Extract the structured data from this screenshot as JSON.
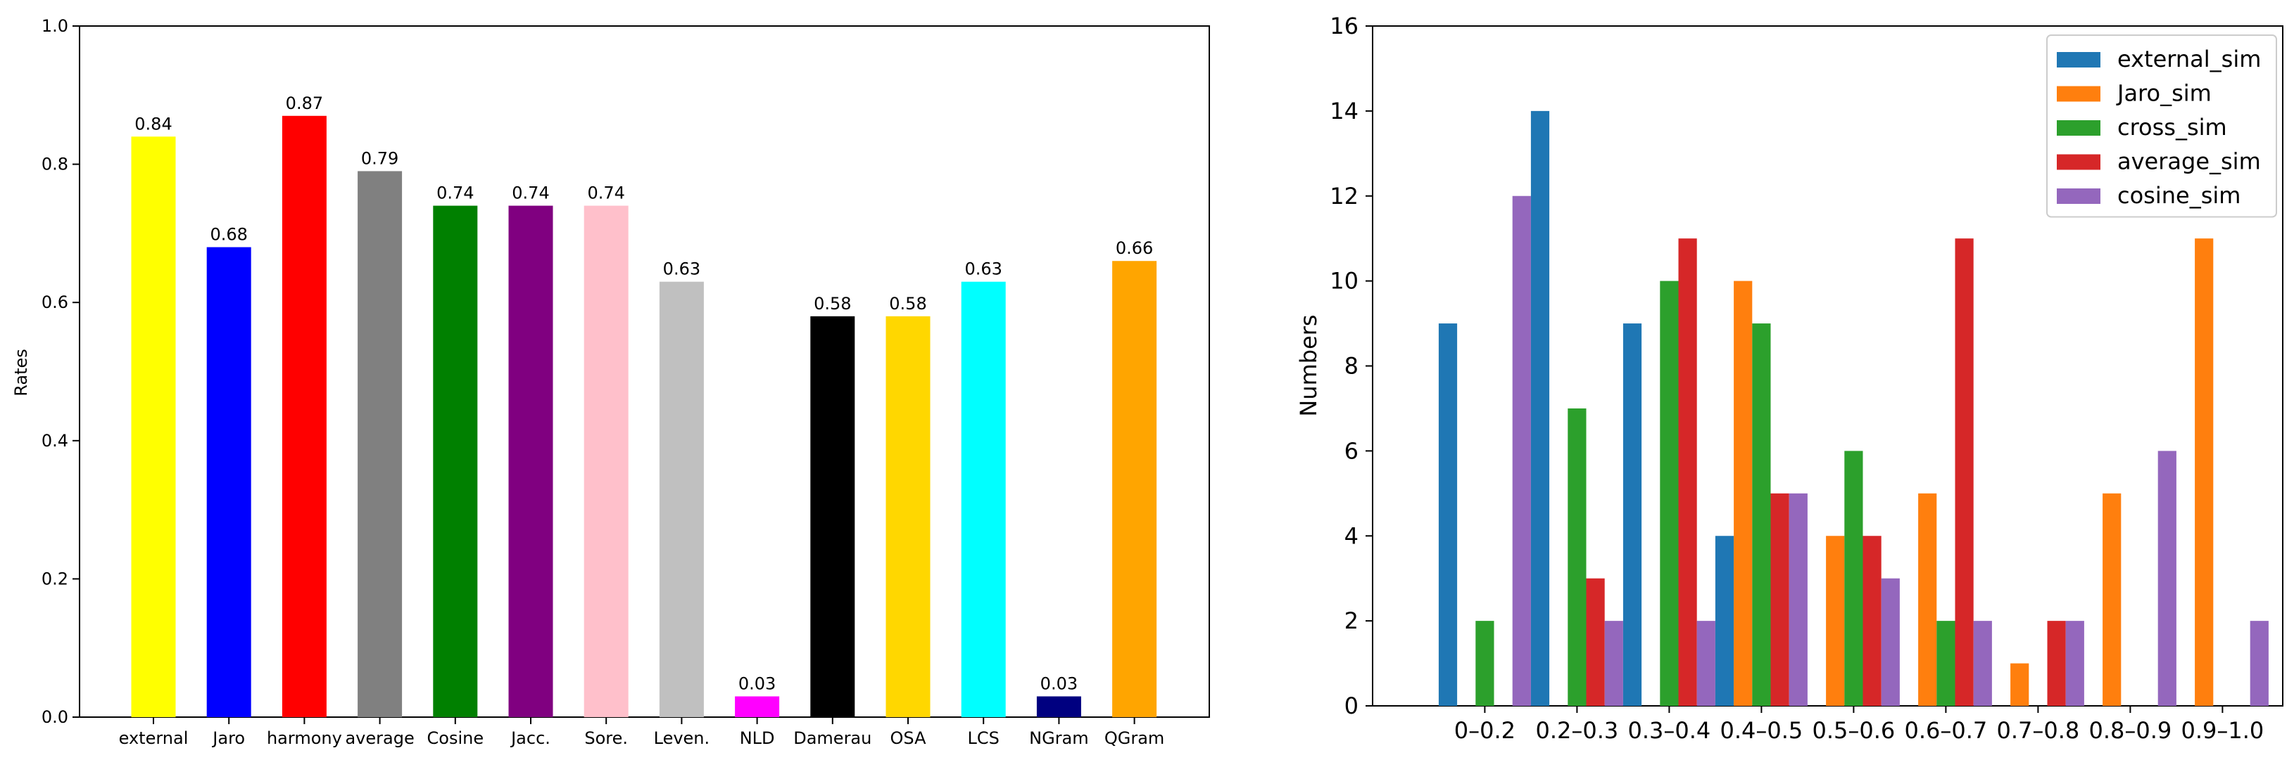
{
  "chart_data": [
    {
      "type": "bar",
      "title": "",
      "xlabel": "",
      "ylabel": "Rates",
      "ylim": [
        0,
        1.0
      ],
      "yticks": [
        "0.0",
        "0.2",
        "0.4",
        "0.6",
        "0.8",
        "1.0"
      ],
      "categories": [
        "external",
        "Jaro",
        "harmony",
        "average",
        "Cosine",
        "Jacc.",
        "Sore.",
        "Leven.",
        "NLD",
        "Damerau",
        "OSA",
        "LCS",
        "NGram",
        "QGram"
      ],
      "values": [
        0.84,
        0.68,
        0.87,
        0.79,
        0.74,
        0.74,
        0.74,
        0.63,
        0.03,
        0.58,
        0.58,
        0.63,
        0.03,
        0.66
      ],
      "value_labels": [
        "0.84",
        "0.68",
        "0.87",
        "0.79",
        "0.74",
        "0.74",
        "0.74",
        "0.63",
        "0.03",
        "0.58",
        "0.58",
        "0.63",
        "0.03",
        "0.66"
      ],
      "colors": [
        "#ffff00",
        "#0000ff",
        "#ff0000",
        "#808080",
        "#008000",
        "#800080",
        "#ffc0cb",
        "#c0c0c0",
        "#ff00ff",
        "#000000",
        "#ffd700",
        "#00ffff",
        "#000080",
        "#ffa500"
      ],
      "grid": false
    },
    {
      "type": "bar",
      "title": "",
      "xlabel": "",
      "ylabel": "Numbers",
      "ylim": [
        0,
        16
      ],
      "yticks": [
        "0",
        "2",
        "4",
        "6",
        "8",
        "10",
        "12",
        "14",
        "16"
      ],
      "categories": [
        "0–0.2",
        "0.2–0.3",
        "0.3–0.4",
        "0.4–0.5",
        "0.5–0.6",
        "0.6–0.7",
        "0.7–0.8",
        "0.8–0.9",
        "0.9–1.0"
      ],
      "series": [
        {
          "name": "external_sim",
          "color": "#1f77b4",
          "values": [
            9,
            14,
            9,
            4,
            0,
            0,
            0,
            0,
            0
          ]
        },
        {
          "name": "Jaro_sim",
          "color": "#ff7f0e",
          "values": [
            0,
            0,
            0,
            10,
            4,
            5,
            1,
            5,
            11
          ]
        },
        {
          "name": "cross_sim",
          "color": "#2ca02c",
          "values": [
            2,
            7,
            10,
            9,
            6,
            2,
            0,
            0,
            0
          ]
        },
        {
          "name": "average_sim",
          "color": "#d62728",
          "values": [
            0,
            3,
            11,
            5,
            4,
            11,
            2,
            0,
            0
          ]
        },
        {
          "name": "cosine_sim",
          "color": "#9467bd",
          "values": [
            12,
            2,
            2,
            5,
            3,
            2,
            2,
            6,
            2
          ]
        }
      ],
      "legend": "top-right",
      "grid": false
    }
  ]
}
